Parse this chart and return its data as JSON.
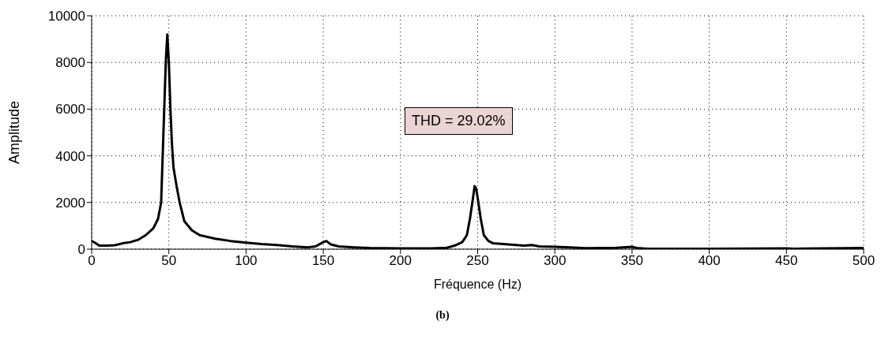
{
  "chart_data": {
    "type": "line",
    "xlabel": "Fréquence (Hz)",
    "ylabel": "Amplitude",
    "x": [
      0,
      2,
      5,
      10,
      15,
      20,
      25,
      30,
      35,
      40,
      43,
      45,
      46,
      47,
      48,
      49,
      50,
      51,
      52,
      53,
      55,
      57,
      60,
      65,
      70,
      80,
      90,
      100,
      110,
      120,
      130,
      140,
      145,
      150,
      152,
      155,
      160,
      170,
      180,
      190,
      200,
      210,
      220,
      230,
      235,
      240,
      243,
      245,
      247,
      248,
      249,
      250,
      252,
      254,
      257,
      260,
      270,
      280,
      285,
      290,
      300,
      310,
      320,
      330,
      340,
      350,
      353,
      360,
      400,
      450,
      455,
      500
    ],
    "series": [
      {
        "color": "#000000",
        "values": [
          350,
          280,
          150,
          150,
          170,
          250,
          300,
          400,
          600,
          900,
          1300,
          2000,
          4000,
          6000,
          8000,
          9200,
          8000,
          6000,
          4500,
          3500,
          2700,
          2000,
          1200,
          800,
          600,
          450,
          350,
          280,
          220,
          180,
          120,
          80,
          120,
          300,
          350,
          200,
          120,
          80,
          50,
          40,
          30,
          30,
          30,
          60,
          150,
          300,
          600,
          1300,
          2200,
          2700,
          2600,
          2200,
          1300,
          600,
          350,
          250,
          200,
          150,
          180,
          120,
          100,
          80,
          40,
          50,
          60,
          100,
          50,
          20,
          20,
          30,
          20,
          50
        ]
      }
    ],
    "xlim": [
      0,
      500
    ],
    "xticks": [
      0,
      50,
      100,
      150,
      200,
      250,
      300,
      350,
      400,
      450,
      500
    ],
    "ylim": [
      0,
      10000
    ],
    "yticks": [
      0,
      2000,
      4000,
      6000,
      8000,
      10000
    ],
    "grid": true,
    "marker": "none",
    "line_style": "solid",
    "annotations": [
      "THD = 29.02%",
      "(b)"
    ]
  }
}
